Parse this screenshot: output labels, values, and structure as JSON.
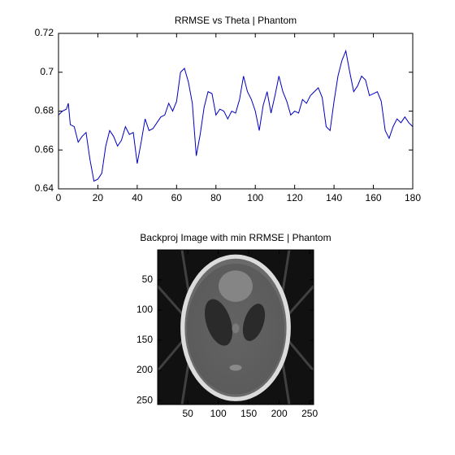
{
  "chart_data": [
    {
      "type": "line",
      "title": "RRMSE vs Theta | Phantom",
      "x": [
        0,
        2,
        4,
        5,
        6,
        8,
        10,
        12,
        14,
        16,
        18,
        20,
        22,
        24,
        26,
        28,
        30,
        32,
        34,
        36,
        38,
        40,
        42,
        44,
        46,
        48,
        50,
        52,
        54,
        56,
        58,
        60,
        62,
        64,
        66,
        68,
        70,
        72,
        74,
        76,
        78,
        80,
        82,
        84,
        86,
        88,
        90,
        92,
        94,
        96,
        98,
        100,
        102,
        104,
        106,
        108,
        110,
        112,
        114,
        116,
        118,
        120,
        122,
        124,
        126,
        128,
        130,
        132,
        134,
        136,
        138,
        140,
        142,
        144,
        146,
        148,
        150,
        152,
        154,
        156,
        158,
        160,
        162,
        164,
        166,
        168,
        170,
        172,
        174,
        176,
        178,
        180
      ],
      "series": [
        {
          "color": "#0000c0",
          "values": [
            0.678,
            0.68,
            0.681,
            0.684,
            0.673,
            0.672,
            0.664,
            0.667,
            0.669,
            0.655,
            0.644,
            0.645,
            0.648,
            0.662,
            0.67,
            0.667,
            0.662,
            0.665,
            0.672,
            0.668,
            0.669,
            0.653,
            0.664,
            0.676,
            0.67,
            0.671,
            0.674,
            0.677,
            0.678,
            0.684,
            0.68,
            0.685,
            0.7,
            0.702,
            0.695,
            0.684,
            0.657,
            0.668,
            0.682,
            0.69,
            0.689,
            0.678,
            0.681,
            0.68,
            0.676,
            0.68,
            0.679,
            0.686,
            0.698,
            0.69,
            0.686,
            0.68,
            0.67,
            0.683,
            0.69,
            0.679,
            0.688,
            0.698,
            0.69,
            0.685,
            0.678,
            0.68,
            0.679,
            0.686,
            0.684,
            0.688,
            0.69,
            0.692,
            0.687,
            0.672,
            0.67,
            0.685,
            0.698,
            0.706,
            0.711,
            0.7,
            0.69,
            0.693,
            0.698,
            0.696,
            0.688,
            0.689,
            0.69,
            0.685,
            0.67,
            0.666,
            0.672,
            0.676,
            0.674,
            0.677,
            0.674,
            0.672
          ]
        }
      ],
      "xlim": [
        0,
        180
      ],
      "xticks": [
        0,
        20,
        40,
        60,
        80,
        100,
        120,
        140,
        160,
        180
      ],
      "ylim": [
        0.64,
        0.72
      ],
      "yticks": [
        0.64,
        0.66,
        0.68,
        0.7,
        0.72
      ]
    },
    {
      "type": "image",
      "title": "Backproj Image with min RRMSE | Phantom",
      "xlim": [
        0.5,
        256.5
      ],
      "xticks": [
        50,
        100,
        150,
        200,
        250
      ],
      "ylim": [
        0.5,
        256.5
      ],
      "yticks": [
        50,
        100,
        150,
        200,
        250
      ],
      "reverse_y": true
    }
  ]
}
